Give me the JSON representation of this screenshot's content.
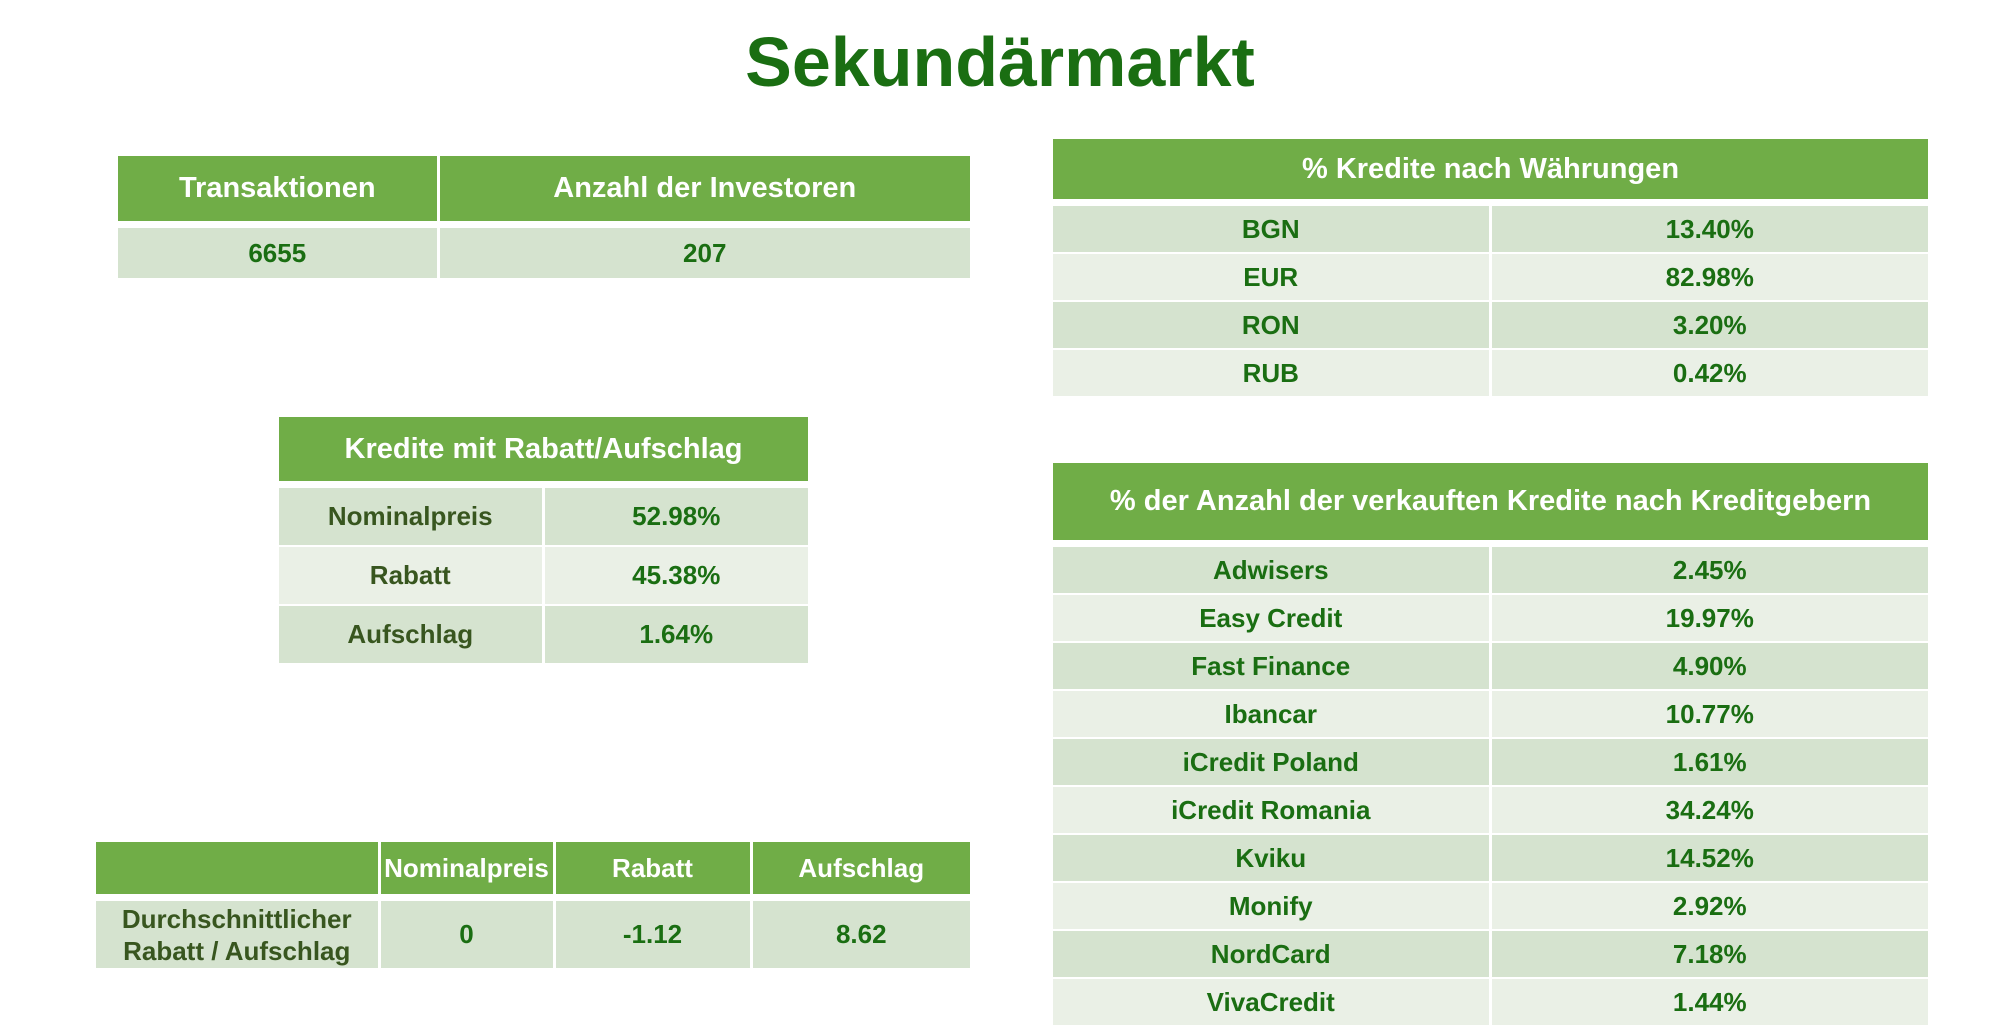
{
  "title": "Sekundärmarkt",
  "summary": {
    "headers": [
      "Transaktionen",
      "Anzahl der Investoren"
    ],
    "values": [
      "6655",
      "207"
    ]
  },
  "discount_table": {
    "header": "Kredite mit Rabatt/Aufschlag",
    "rows": [
      {
        "label": "Nominalpreis",
        "value": "52.98%"
      },
      {
        "label": "Rabatt",
        "value": "45.38%"
      },
      {
        "label": "Aufschlag",
        "value": "1.64%"
      }
    ]
  },
  "average_table": {
    "headers": [
      "",
      "Nominalpreis",
      "Rabatt",
      "Aufschlag"
    ],
    "row_label": "Durchschnittlicher Rabatt / Aufschlag",
    "values": [
      "0",
      "-1.12",
      "8.62"
    ]
  },
  "currency_table": {
    "header": "% Kredite nach Währungen",
    "rows": [
      {
        "label": "BGN",
        "value": "13.40%"
      },
      {
        "label": "EUR",
        "value": "82.98%"
      },
      {
        "label": "RON",
        "value": "3.20%"
      },
      {
        "label": "RUB",
        "value": "0.42%"
      }
    ]
  },
  "lenders_table": {
    "header": "% der Anzahl der verkauften Kredite nach Kreditgebern",
    "rows": [
      {
        "label": "Adwisers",
        "value": "2.45%"
      },
      {
        "label": "Easy Credit",
        "value": "19.97%"
      },
      {
        "label": "Fast Finance",
        "value": "4.90%"
      },
      {
        "label": "Ibancar",
        "value": "10.77%"
      },
      {
        "label": "iCredit Poland",
        "value": "1.61%"
      },
      {
        "label": "iCredit Romania",
        "value": "34.24%"
      },
      {
        "label": "Kviku",
        "value": "14.52%"
      },
      {
        "label": "Monify",
        "value": "2.92%"
      },
      {
        "label": "NordCard",
        "value": "7.18%"
      },
      {
        "label": "VivaCredit",
        "value": "1.44%"
      }
    ]
  },
  "colors": {
    "header_green": "#70ad47",
    "title_green": "#1a6e12",
    "row_dark": "#d5e3cf",
    "row_light": "#eaf0e6"
  }
}
